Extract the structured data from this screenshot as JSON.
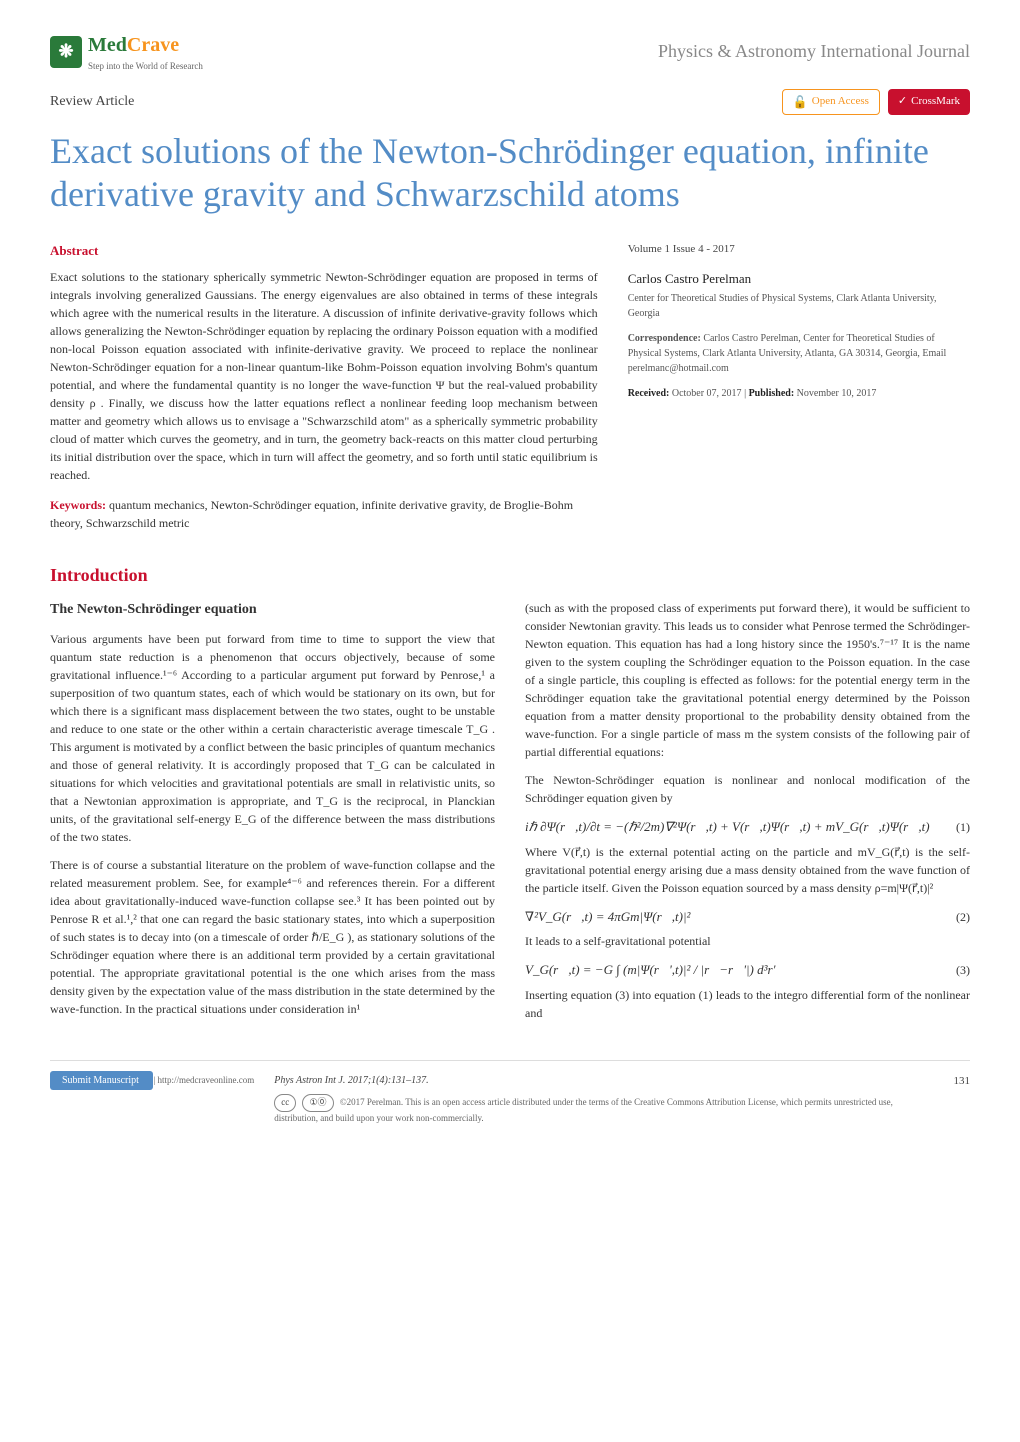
{
  "header": {
    "logo_main": "Med",
    "logo_accent": "Crave",
    "logo_sub": "Step into the World of Research",
    "journal": "Physics & Astronomy International Journal"
  },
  "meta": {
    "article_type": "Review Article",
    "open_access": "Open Access",
    "crossmark": "CrossMark"
  },
  "title": "Exact solutions of the Newton-Schrödinger equation, infinite derivative gravity and Schwarzschild atoms",
  "abstract": {
    "heading": "Abstract",
    "text": "Exact solutions to the stationary spherically symmetric Newton-Schrödinger equation are proposed in terms of integrals involving generalized Gaussians. The energy eigenvalues are also obtained in terms of these integrals which agree with the numerical results in the literature. A discussion of infinite derivative-gravity follows which allows generalizing the Newton-Schrödinger equation by replacing the ordinary Poisson equation with a modified non-local Poisson equation associated with infinite-derivative gravity. We proceed to replace the nonlinear Newton-Schrödinger equation for a non-linear quantum-like Bohm-Poisson equation involving Bohm's quantum potential, and where the fundamental quantity is no longer the wave-function Ψ but the real-valued probability density ρ . Finally, we discuss how the latter equations reflect a nonlinear feeding loop mechanism between matter and geometry which allows us to envisage a \"Schwarzschild atom\" as a spherically symmetric probability cloud of matter which curves the geometry, and in turn, the geometry back-reacts on this matter cloud perturbing its initial distribution over the space, which in turn will affect the geometry, and so forth until static equilibrium is reached.",
    "keywords_label": "Keywords:",
    "keywords": "quantum mechanics, Newton-Schrödinger equation, infinite derivative gravity, de Broglie-Bohm theory, Schwarzschild metric"
  },
  "sidebar": {
    "vol_issue": "Volume 1 Issue 4 - 2017",
    "author": "Carlos Castro Perelman",
    "affiliation": "Center for Theoretical Studies of Physical Systems, Clark Atlanta University, Georgia",
    "corr_label": "Correspondence:",
    "corr_text": "Carlos Castro Perelman, Center for Theoretical Studies of Physical Systems, Clark Atlanta University, Atlanta, GA 30314, Georgia, Email perelmanc@hotmail.com",
    "received_label": "Received:",
    "received": "October 07, 2017",
    "published_label": "Published:",
    "published": "November 10, 2017"
  },
  "intro": {
    "heading": "Introduction",
    "sub_heading": "The Newton-Schrödinger equation",
    "p1": "Various arguments have been put forward from time to time to support the view that quantum state reduction is a phenomenon that occurs objectively, because of some gravitational influence.¹⁻⁶ According to a particular argument put forward by Penrose,¹ a superposition of two quantum states, each of which would be stationary on its own, but for which there is a significant mass displacement between the two states, ought to be unstable and reduce to one state or the other within a certain characteristic average timescale T_G . This argument is motivated by a conflict between the basic principles of quantum mechanics and those of general relativity. It is accordingly proposed that T_G can be calculated in situations for which velocities and gravitational potentials are small in relativistic units, so that a Newtonian approximation is appropriate, and T_G is the reciprocal, in Planckian units, of the gravitational self-energy E_G of the difference between the mass distributions of the two states.",
    "p2": "There is of course a substantial literature on the problem of wave-function collapse and the related measurement problem. See, for example⁴⁻⁶ and references therein. For a different idea about gravitationally-induced wave-function collapse see.³ It has been pointed out by Penrose R et al.¹,² that one can regard the basic stationary states, into which a superposition of such states is to decay into (on a timescale of order ℏ/E_G ), as stationary solutions of the Schrödinger equation where there is an additional term provided by a certain gravitational potential. The appropriate gravitational potential is the one which arises from the mass density given by the expectation value of the mass distribution in the state determined by the wave-function. In the practical situations under consideration in¹",
    "p3": "(such as with the proposed class of experiments put forward there), it would be sufficient to consider Newtonian gravity. This leads us to consider what Penrose termed the Schrödinger-Newton equation. This equation has had a long history since the 1950's.⁷⁻¹⁷ It is the name given to the system coupling the Schrödinger equation to the Poisson equation. In the case of a single particle, this coupling is effected as follows: for the potential energy term in the Schrödinger equation take the gravitational potential energy determined by the Poisson equation from a matter density proportional to the probability density obtained from the wave-function. For a single particle of mass m the system consists of the following pair of partial differential equations:",
    "p4": "The Newton-Schrödinger equation is nonlinear and nonlocal modification of the Schrödinger equation given by",
    "eq1": "iℏ ∂Ψ(r⃗,t)/∂t = −(ℏ²/2m)∇²Ψ(r⃗,t) + V(r⃗,t)Ψ(r⃗,t) + mV_G(r⃗,t)Ψ(r⃗,t)",
    "eq1_num": "(1)",
    "p5": "Where V(r⃗,t) is the external potential acting on the particle and mV_G(r⃗,t) is the self- gravitational potential energy arising due a mass density obtained from the wave function of the particle itself. Given the Poisson equation sourced by a mass density ρ=m|Ψ(r⃗,t)|²",
    "eq2": "∇²V_G(r⃗,t) = 4πGm|Ψ(r⃗,t)|²",
    "eq2_num": "(2)",
    "p6": "It leads to a self-gravitational potential",
    "eq3": "V_G(r⃗,t) = −G ∫ (m|Ψ(r⃗',t)|² / |r⃗−r⃗'|) d³r'",
    "eq3_num": "(3)",
    "p7": "Inserting equation (3) into equation (1) leads to the integro differential form of the nonlinear and"
  },
  "footer": {
    "submit": "Submit Manuscript",
    "submit_url": "| http://medcraveonline.com",
    "citation": "Phys Astron Int J. 2017;1(4):131–137.",
    "page": "131",
    "cc": "cc",
    "by": "①⓪",
    "license": "©2017 Perelman. This is an open access article distributed under the terms of the Creative Commons Attribution License, which permits unrestricted use, distribution, and build upon your work non-commercially."
  }
}
